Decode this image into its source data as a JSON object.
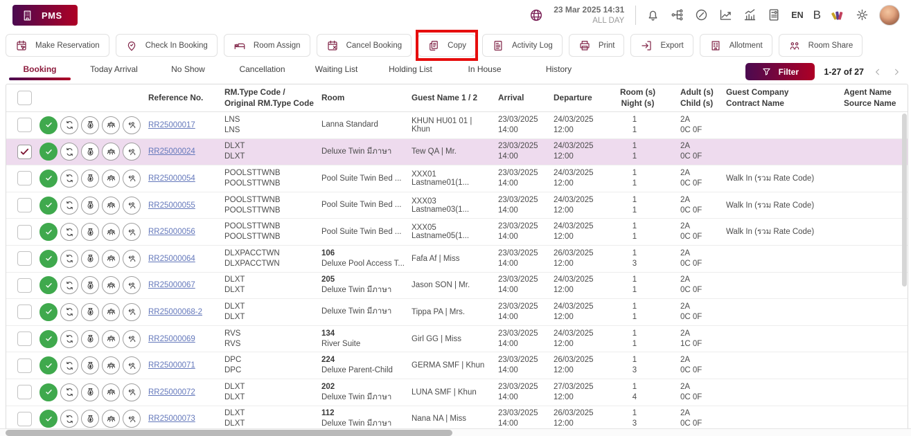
{
  "app": {
    "logo_label": "PMS"
  },
  "topbar": {
    "datetime": "23 Mar 2025  14:31",
    "shift": "ALL DAY",
    "right_items": [
      {
        "type": "icon",
        "name": "bell"
      },
      {
        "type": "icon",
        "name": "network"
      },
      {
        "type": "icon",
        "name": "gauge"
      },
      {
        "type": "icon",
        "name": "line-chart"
      },
      {
        "type": "icon",
        "name": "bar-chart"
      },
      {
        "type": "icon",
        "name": "report"
      },
      {
        "type": "text",
        "name": "language",
        "value": "EN"
      },
      {
        "type": "text",
        "name": "brand-letter",
        "value": "B",
        "big": true
      },
      {
        "type": "icon",
        "name": "palette"
      },
      {
        "type": "icon",
        "name": "gear"
      },
      {
        "type": "avatar",
        "name": "user-avatar"
      }
    ]
  },
  "toolbar": {
    "buttons": [
      {
        "label": "Make Reservation",
        "icon": "make-reservation"
      },
      {
        "label": "Check In Booking",
        "icon": "check-in"
      },
      {
        "label": "Room Assign",
        "icon": "bed"
      },
      {
        "label": "Cancel Booking",
        "icon": "cancel-booking"
      },
      {
        "label": "Copy",
        "icon": "copy",
        "highlighted": true
      },
      {
        "label": "Activity Log",
        "icon": "activity-log"
      },
      {
        "label": "Print",
        "icon": "print"
      },
      {
        "label": "Export",
        "icon": "export"
      },
      {
        "label": "Allotment",
        "icon": "allotment"
      },
      {
        "label": "Room Share",
        "icon": "room-share"
      }
    ]
  },
  "tabs": [
    {
      "label": "Booking",
      "active": true
    },
    {
      "label": "Today Arrival",
      "active": false
    },
    {
      "label": "No Show",
      "active": false
    },
    {
      "label": "Cancellation",
      "active": false
    },
    {
      "label": "Waiting List",
      "active": false
    },
    {
      "label": "Holding List",
      "active": false
    },
    {
      "label": "In House",
      "active": false
    },
    {
      "label": "History",
      "active": false
    }
  ],
  "filter": {
    "label": "Filter"
  },
  "pagination": {
    "range": "1-27 of 27"
  },
  "colors": {
    "brand_gradient_start": "#4b0a50",
    "brand_gradient_end": "#ae0025",
    "toolbar_icon": "#802447",
    "active_tab": "#8c1a3c",
    "link": "#6478bb",
    "selected_row_bg": "#eedbee",
    "status_green": "#3fa94d",
    "highlight_red": "#e60d0d"
  },
  "table": {
    "headers": [
      {
        "line1": "Reference No.",
        "line2": ""
      },
      {
        "line1": "RM.Type Code /",
        "line2": "Original RM.Type Code"
      },
      {
        "line1": "Room",
        "line2": ""
      },
      {
        "line1": "Guest Name 1 / 2",
        "line2": ""
      },
      {
        "line1": "Arrival",
        "line2": ""
      },
      {
        "line1": "Departure",
        "line2": ""
      },
      {
        "line1": "Room (s)",
        "line2": "Night (s)"
      },
      {
        "line1": "Adult (s)",
        "line2": "Child (s)"
      },
      {
        "line1": "Guest Company",
        "line2": "Contract Name"
      },
      {
        "line1": "Agent Name",
        "line2": "Source Name"
      }
    ],
    "row_icons": [
      "check-circle",
      "refresh",
      "money-bag",
      "group",
      "person-share"
    ],
    "rows": [
      {
        "selected": false,
        "reference": "RR25000017",
        "rm_type": "LNS",
        "rm_type_original": "LNS",
        "room_no": "",
        "room_name": "Lanna Standard",
        "guest": "KHUN HU01 01 | Khun",
        "arrival_date": "23/03/2025",
        "arrival_time": "14:00",
        "departure_date": "24/03/2025",
        "departure_time": "12:00",
        "rooms": "1",
        "nights": "1",
        "adults": "2A",
        "children": "0C 0F",
        "company": "",
        "agent": ""
      },
      {
        "selected": true,
        "reference": "RR25000024",
        "rm_type": "DLXT",
        "rm_type_original": "DLXT",
        "room_no": "",
        "room_name": "Deluxe Twin มีภาษา",
        "guest": "Tew QA | Mr.",
        "arrival_date": "23/03/2025",
        "arrival_time": "14:00",
        "departure_date": "24/03/2025",
        "departure_time": "12:00",
        "rooms": "1",
        "nights": "1",
        "adults": "2A",
        "children": "0C 0F",
        "company": "",
        "agent": ""
      },
      {
        "selected": false,
        "reference": "RR25000054",
        "rm_type": "POOLSTTWNB",
        "rm_type_original": "POOLSTTWNB",
        "room_no": "",
        "room_name": "Pool Suite Twin Bed ...",
        "guest": "XXX01 Lastname01(1...",
        "arrival_date": "23/03/2025",
        "arrival_time": "14:00",
        "departure_date": "24/03/2025",
        "departure_time": "12:00",
        "rooms": "1",
        "nights": "1",
        "adults": "2A",
        "children": "0C 0F",
        "company": "Walk In (รวม Rate Code)",
        "agent": ""
      },
      {
        "selected": false,
        "reference": "RR25000055",
        "rm_type": "POOLSTTWNB",
        "rm_type_original": "POOLSTTWNB",
        "room_no": "",
        "room_name": "Pool Suite Twin Bed ...",
        "guest": "XXX03 Lastname03(1...",
        "arrival_date": "23/03/2025",
        "arrival_time": "14:00",
        "departure_date": "24/03/2025",
        "departure_time": "12:00",
        "rooms": "1",
        "nights": "1",
        "adults": "2A",
        "children": "0C 0F",
        "company": "Walk In (รวม Rate Code)",
        "agent": ""
      },
      {
        "selected": false,
        "reference": "RR25000056",
        "rm_type": "POOLSTTWNB",
        "rm_type_original": "POOLSTTWNB",
        "room_no": "",
        "room_name": "Pool Suite Twin Bed ...",
        "guest": "XXX05 Lastname05(1...",
        "arrival_date": "23/03/2025",
        "arrival_time": "14:00",
        "departure_date": "24/03/2025",
        "departure_time": "12:00",
        "rooms": "1",
        "nights": "1",
        "adults": "2A",
        "children": "0C 0F",
        "company": "Walk In (รวม Rate Code)",
        "agent": ""
      },
      {
        "selected": false,
        "reference": "RR25000064",
        "rm_type": "DLXPACCTWN",
        "rm_type_original": "DLXPACCTWN",
        "room_no": "106",
        "room_name": "Deluxe Pool Access T...",
        "guest": "Fafa Af | Miss",
        "arrival_date": "23/03/2025",
        "arrival_time": "14:00",
        "departure_date": "26/03/2025",
        "departure_time": "12:00",
        "rooms": "1",
        "nights": "3",
        "adults": "2A",
        "children": "0C 0F",
        "company": "",
        "agent": ""
      },
      {
        "selected": false,
        "reference": "RR25000067",
        "rm_type": "DLXT",
        "rm_type_original": "DLXT",
        "room_no": "205",
        "room_name": "Deluxe Twin มีภาษา",
        "guest": "Jason SON | Mr.",
        "arrival_date": "23/03/2025",
        "arrival_time": "14:00",
        "departure_date": "24/03/2025",
        "departure_time": "12:00",
        "rooms": "1",
        "nights": "1",
        "adults": "2A",
        "children": "0C 0F",
        "company": "",
        "agent": ""
      },
      {
        "selected": false,
        "reference": "RR25000068-2",
        "rm_type": "DLXT",
        "rm_type_original": "DLXT",
        "room_no": "",
        "room_name": "Deluxe Twin มีภาษา",
        "guest": "Tippa PA | Mrs.",
        "arrival_date": "23/03/2025",
        "arrival_time": "14:00",
        "departure_date": "24/03/2025",
        "departure_time": "12:00",
        "rooms": "1",
        "nights": "1",
        "adults": "2A",
        "children": "0C 0F",
        "company": "",
        "agent": ""
      },
      {
        "selected": false,
        "reference": "RR25000069",
        "rm_type": "RVS",
        "rm_type_original": "RVS",
        "room_no": "134",
        "room_name": "River Suite",
        "guest": "Girl GG | Miss",
        "arrival_date": "23/03/2025",
        "arrival_time": "14:00",
        "departure_date": "24/03/2025",
        "departure_time": "12:00",
        "rooms": "1",
        "nights": "1",
        "adults": "2A",
        "children": "1C 0F",
        "company": "",
        "agent": ""
      },
      {
        "selected": false,
        "reference": "RR25000071",
        "rm_type": "DPC",
        "rm_type_original": "DPC",
        "room_no": "224",
        "room_name": "Deluxe Parent-Child",
        "guest": "GERMA SMF | Khun",
        "arrival_date": "23/03/2025",
        "arrival_time": "14:00",
        "departure_date": "26/03/2025",
        "departure_time": "12:00",
        "rooms": "1",
        "nights": "3",
        "adults": "2A",
        "children": "0C 0F",
        "company": "",
        "agent": ""
      },
      {
        "selected": false,
        "reference": "RR25000072",
        "rm_type": "DLXT",
        "rm_type_original": "DLXT",
        "room_no": "202",
        "room_name": "Deluxe Twin มีภาษา",
        "guest": "LUNA SMF | Khun",
        "arrival_date": "23/03/2025",
        "arrival_time": "14:00",
        "departure_date": "27/03/2025",
        "departure_time": "12:00",
        "rooms": "1",
        "nights": "4",
        "adults": "2A",
        "children": "0C 0F",
        "company": "",
        "agent": ""
      },
      {
        "selected": false,
        "reference": "RR25000073",
        "rm_type": "DLXT",
        "rm_type_original": "DLXT",
        "room_no": "112",
        "room_name": "Deluxe Twin มีภาษา",
        "guest": "Nana NA | Miss",
        "arrival_date": "23/03/2025",
        "arrival_time": "14:00",
        "departure_date": "26/03/2025",
        "departure_time": "12:00",
        "rooms": "1",
        "nights": "3",
        "adults": "2A",
        "children": "0C 0F",
        "company": "",
        "agent": ""
      }
    ]
  }
}
